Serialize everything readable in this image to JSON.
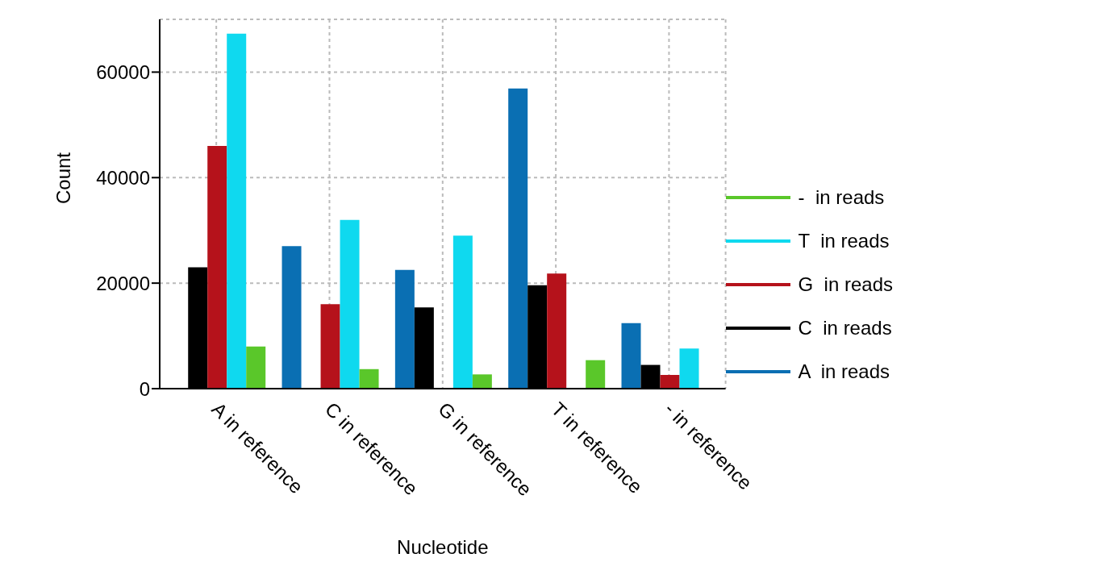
{
  "chart_data": {
    "type": "bar",
    "xlabel": "Nucleotide",
    "ylabel": "Count",
    "categories": [
      "A in reference",
      "C in reference",
      "G in reference",
      "T in reference",
      "- in reference"
    ],
    "series": [
      {
        "name": "A  in reads",
        "color": "#0a6fb3",
        "values": [
          0,
          27000,
          22500,
          56900,
          12400
        ]
      },
      {
        "name": "C  in reads",
        "color": "#000000",
        "values": [
          23000,
          0,
          15400,
          19600,
          4500
        ]
      },
      {
        "name": "G  in reads",
        "color": "#b5121b",
        "values": [
          46000,
          16000,
          0,
          21800,
          2600
        ]
      },
      {
        "name": "T  in reads",
        "color": "#0fd9ef",
        "values": [
          67300,
          32000,
          29000,
          0,
          7600
        ]
      },
      {
        "name": "-  in reads",
        "color": "#5ac72a",
        "values": [
          8000,
          3700,
          2700,
          5400,
          0
        ]
      }
    ],
    "ylim": [
      0,
      70000
    ],
    "yticks": [
      0,
      20000,
      40000,
      60000
    ],
    "grid": true,
    "legend": "right"
  }
}
